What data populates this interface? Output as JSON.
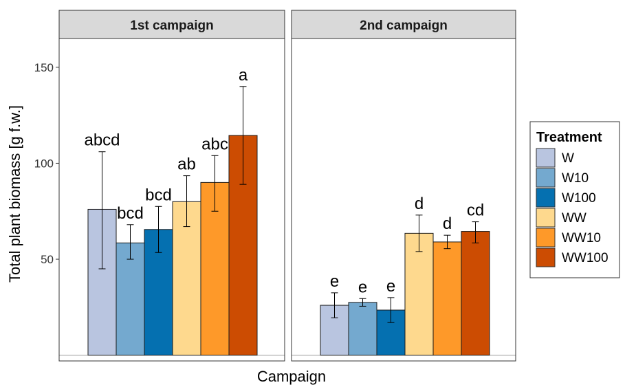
{
  "chart_data": {
    "type": "bar",
    "xlabel": "Campaign",
    "ylabel": "Total plant biomass [g f.w.]",
    "yticks": [
      50,
      100,
      150
    ],
    "ylim": [
      -3,
      165
    ],
    "grid": false,
    "legend_position": "right",
    "legend": {
      "title": "Treatment",
      "items": [
        {
          "name": "W",
          "color": "#b9c5e0"
        },
        {
          "name": "W10",
          "color": "#74a9cf"
        },
        {
          "name": "W100",
          "color": "#0570b0"
        },
        {
          "name": "WW",
          "color": "#fed98e"
        },
        {
          "name": "WW10",
          "color": "#fe9929"
        },
        {
          "name": "WW100",
          "color": "#cc4c02"
        }
      ]
    },
    "panels": [
      {
        "title": "1st campaign",
        "bars": [
          {
            "treatment": "W",
            "value": 76,
            "err_low": 45,
            "err_high": 106,
            "letter": "abcd"
          },
          {
            "treatment": "W10",
            "value": 58.5,
            "err_low": 50,
            "err_high": 68,
            "letter": "bcd"
          },
          {
            "treatment": "W100",
            "value": 65.5,
            "err_low": 53.5,
            "err_high": 77.5,
            "letter": "bcd"
          },
          {
            "treatment": "WW",
            "value": 80,
            "err_low": 67,
            "err_high": 93.5,
            "letter": "ab"
          },
          {
            "treatment": "WW10",
            "value": 90,
            "err_low": 75,
            "err_high": 104,
            "letter": "abc"
          },
          {
            "treatment": "WW100",
            "value": 114.5,
            "err_low": 89,
            "err_high": 140,
            "letter": "a"
          }
        ]
      },
      {
        "title": "2nd campaign",
        "bars": [
          {
            "treatment": "W",
            "value": 26,
            "err_low": 19.5,
            "err_high": 32.5,
            "letter": "e"
          },
          {
            "treatment": "W10",
            "value": 27.5,
            "err_low": 25.5,
            "err_high": 29.5,
            "letter": "e"
          },
          {
            "treatment": "W100",
            "value": 23.5,
            "err_low": 17,
            "err_high": 30,
            "letter": "e"
          },
          {
            "treatment": "WW",
            "value": 63.5,
            "err_low": 54,
            "err_high": 73,
            "letter": "d"
          },
          {
            "treatment": "WW10",
            "value": 59,
            "err_low": 55.5,
            "err_high": 62.5,
            "letter": "d"
          },
          {
            "treatment": "WW100",
            "value": 64.5,
            "err_low": 58.5,
            "err_high": 69.5,
            "letter": "cd"
          }
        ]
      }
    ]
  }
}
